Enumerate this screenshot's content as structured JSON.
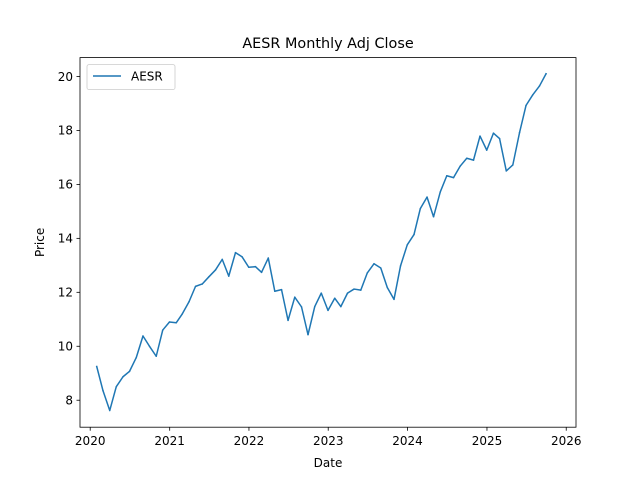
{
  "chart_data": {
    "type": "line",
    "title": "AESR Monthly Adj Close",
    "xlabel": "Date",
    "ylabel": "Price",
    "xlim": [
      "2019-11-15",
      "2026-02-15"
    ],
    "ylim": [
      7.0,
      20.7
    ],
    "x_ticks": [
      "2020",
      "2021",
      "2022",
      "2023",
      "2024",
      "2025",
      "2026"
    ],
    "y_ticks": [
      8,
      10,
      12,
      14,
      16,
      18,
      20
    ],
    "grid": false,
    "legend_position": "upper-left",
    "series": [
      {
        "name": "AESR",
        "color": "#1f77b4",
        "x": [
          "2020-01-31",
          "2020-02-29",
          "2020-03-31",
          "2020-04-30",
          "2020-05-31",
          "2020-06-30",
          "2020-07-31",
          "2020-08-31",
          "2020-09-30",
          "2020-10-31",
          "2020-11-30",
          "2020-12-31",
          "2021-01-31",
          "2021-02-28",
          "2021-03-31",
          "2021-04-30",
          "2021-05-31",
          "2021-06-30",
          "2021-07-31",
          "2021-08-31",
          "2021-09-30",
          "2021-10-31",
          "2021-11-30",
          "2021-12-31",
          "2022-01-31",
          "2022-02-28",
          "2022-03-31",
          "2022-04-30",
          "2022-05-31",
          "2022-06-30",
          "2022-07-31",
          "2022-08-31",
          "2022-09-30",
          "2022-10-31",
          "2022-11-30",
          "2022-12-31",
          "2023-01-31",
          "2023-02-28",
          "2023-03-31",
          "2023-04-30",
          "2023-05-31",
          "2023-06-30",
          "2023-07-31",
          "2023-08-31",
          "2023-09-30",
          "2023-10-31",
          "2023-11-30",
          "2023-12-31",
          "2024-01-31",
          "2024-02-29",
          "2024-03-31",
          "2024-04-30",
          "2024-05-31",
          "2024-06-30",
          "2024-07-31",
          "2024-08-31",
          "2024-09-30",
          "2024-10-31",
          "2024-11-30",
          "2024-12-31",
          "2025-01-31",
          "2025-02-28",
          "2025-03-31",
          "2025-04-30",
          "2025-05-31",
          "2025-06-30",
          "2025-07-31",
          "2025-08-31",
          "2025-09-30"
        ],
        "y": [
          9.25,
          8.35,
          7.62,
          8.5,
          8.87,
          9.07,
          9.58,
          10.38,
          10.0,
          9.63,
          10.6,
          10.9,
          10.87,
          11.2,
          11.65,
          12.22,
          12.31,
          12.57,
          12.83,
          13.22,
          12.6,
          13.47,
          13.32,
          12.93,
          12.95,
          12.74,
          13.27,
          12.04,
          12.1,
          10.96,
          11.82,
          11.46,
          10.43,
          11.47,
          11.97,
          11.33,
          11.78,
          11.47,
          11.97,
          12.12,
          12.08,
          12.72,
          13.06,
          12.9,
          12.18,
          11.74,
          12.98,
          13.76,
          14.14,
          15.1,
          15.53,
          14.8,
          15.72,
          16.32,
          16.25,
          16.68,
          16.97,
          16.9,
          17.79,
          17.27,
          17.9,
          17.7,
          16.5,
          16.72,
          17.92,
          18.93,
          19.32,
          19.65,
          20.1
        ]
      }
    ]
  }
}
